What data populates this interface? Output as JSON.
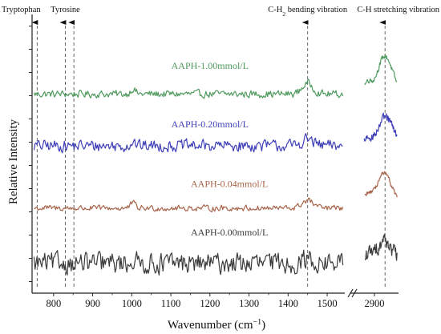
{
  "chart_data": {
    "type": "line",
    "title": "",
    "xlabel": "Wavenumber (cm−1)",
    "ylabel": "Relative Intensity",
    "x_axis_broken": true,
    "x_segments": [
      {
        "range": [
          745,
          1545
        ]
      },
      {
        "range": [
          2845,
          2975
        ]
      }
    ],
    "x_ticks_left": [
      800,
      900,
      1000,
      1100,
      1200,
      1300,
      1400,
      1500
    ],
    "x_ticks_right": [
      2900
    ],
    "ylim": [
      0,
      4.2
    ],
    "y_tick_count": 12,
    "y_ticks_labeled": false,
    "grid": false,
    "annotations": [
      {
        "label": "Tryptophan",
        "x": 758
      },
      {
        "label": "Tyrosine",
        "x": 830
      },
      {
        "label": "",
        "x": 852
      },
      {
        "label": "C-H₂ bending vibration",
        "x": 1450
      },
      {
        "label": "C-H stretching vibration",
        "x": 2933
      }
    ],
    "series": [
      {
        "name": "AAPH-1.00mmol/L",
        "color": "#4f9a5e",
        "baseline": 3.0,
        "noise": 0.05,
        "label_x": 1200,
        "label_offset": 0.38,
        "left_slope": 0.0,
        "left_peaks": [
          {
            "x": 1003,
            "h": 0.08
          },
          {
            "x": 1450,
            "h": 0.16
          }
        ],
        "right_start": 2870,
        "right_base": 3.05,
        "right_peak": {
          "x": 2933,
          "h": 0.52
        }
      },
      {
        "name": "AAPH-0.20mmol/L",
        "color": "#3f3fb8",
        "baseline": 2.22,
        "noise": 0.08,
        "label_x": 1200,
        "label_offset": 0.28,
        "left_slope": 0.0,
        "left_peaks": [
          {
            "x": 1003,
            "h": 0.06
          },
          {
            "x": 1450,
            "h": 0.1
          }
        ],
        "right_start": 2868,
        "right_base": 2.25,
        "right_peak": {
          "x": 2935,
          "h": 0.4
        }
      },
      {
        "name": "AAPH-0.04mmol/L",
        "color": "#a8644a",
        "baseline": 1.28,
        "noise": 0.04,
        "label_x": 1250,
        "label_offset": 0.32,
        "left_slope": 0.0,
        "left_peaks": [
          {
            "x": 1003,
            "h": 0.08
          },
          {
            "x": 1450,
            "h": 0.12
          }
        ],
        "right_start": 2870,
        "right_base": 1.38,
        "right_peak": {
          "x": 2930,
          "h": 0.42
        }
      },
      {
        "name": "AAPH-0.00mmol/L",
        "color": "#3b3b3b",
        "baseline": 0.45,
        "noise": 0.14,
        "label_x": 1250,
        "label_offset": 0.42,
        "left_slope": 0.0,
        "left_peaks": [
          {
            "x": 1003,
            "h": 0.05
          },
          {
            "x": 1450,
            "h": 0.06
          }
        ],
        "right_start": 2870,
        "right_base": 0.5,
        "right_peak": {
          "x": 2930,
          "h": 0.3
        }
      }
    ]
  }
}
